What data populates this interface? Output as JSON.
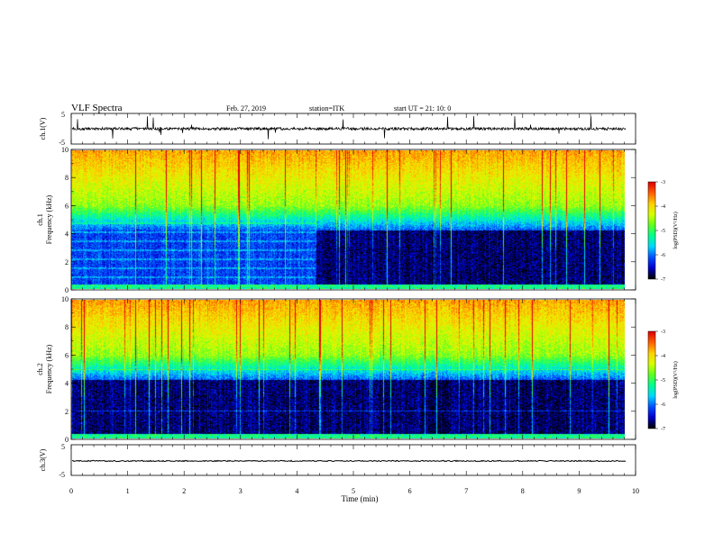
{
  "header": {
    "title": "VLF Spectra",
    "date": "Feb. 27, 2019",
    "station": "station=ITK",
    "start": "start UT =  21: 10: 0"
  },
  "chart_data": [
    {
      "type": "line",
      "name": "ch1-waveform",
      "ylabel": "ch.1(V)",
      "ylim": [
        -5,
        5
      ],
      "y_ticks": [
        "5",
        "-5"
      ],
      "xlim": [
        0,
        10
      ],
      "data_end_min": 9.83
    },
    {
      "type": "heatmap",
      "name": "ch1-spectrogram",
      "ylabel_line1": "ch.1",
      "ylabel_line2": "Frequency (kHz)",
      "ylim": [
        0,
        10
      ],
      "y_ticks": [
        "0",
        "2",
        "4",
        "6",
        "8",
        "10"
      ],
      "xlim": [
        0,
        10
      ],
      "data_end_min": 9.83,
      "colorbar": {
        "label": "log(PSD)(V²/Hz)",
        "range": [
          -7,
          -3
        ],
        "ticks": [
          "-3",
          "-4",
          "-5",
          "-6",
          "-7"
        ],
        "colormap": [
          "#000000",
          "#0000cc",
          "#0050ff",
          "#00d8ff",
          "#00ff90",
          "#60ff20",
          "#d8ff00",
          "#ffd000",
          "#ff6000",
          "#e00000"
        ]
      }
    },
    {
      "type": "heatmap",
      "name": "ch2-spectrogram",
      "ylabel_line1": "ch.2",
      "ylabel_line2": "Frequency (kHz)",
      "ylim": [
        0,
        10
      ],
      "y_ticks": [
        "0",
        "2",
        "4",
        "6",
        "8",
        "10"
      ],
      "xlim": [
        0,
        10
      ],
      "data_end_min": 9.83,
      "colorbar": {
        "label": "log(PSD)(V²/Hz)",
        "range": [
          -7,
          -3
        ],
        "ticks": [
          "-3",
          "-4",
          "-5",
          "-6",
          "-7"
        ]
      }
    },
    {
      "type": "line",
      "name": "ch3-waveform",
      "ylabel": "ch.3(V)",
      "ylim": [
        -5,
        5
      ],
      "y_ticks": [
        "5",
        "-5"
      ],
      "xlim": [
        0,
        10
      ],
      "data_end_min": 9.83
    }
  ],
  "xaxis": {
    "label": "Time (min)",
    "ticks": [
      "0",
      "1",
      "2",
      "3",
      "4",
      "5",
      "6",
      "7",
      "8",
      "9",
      "10"
    ]
  }
}
